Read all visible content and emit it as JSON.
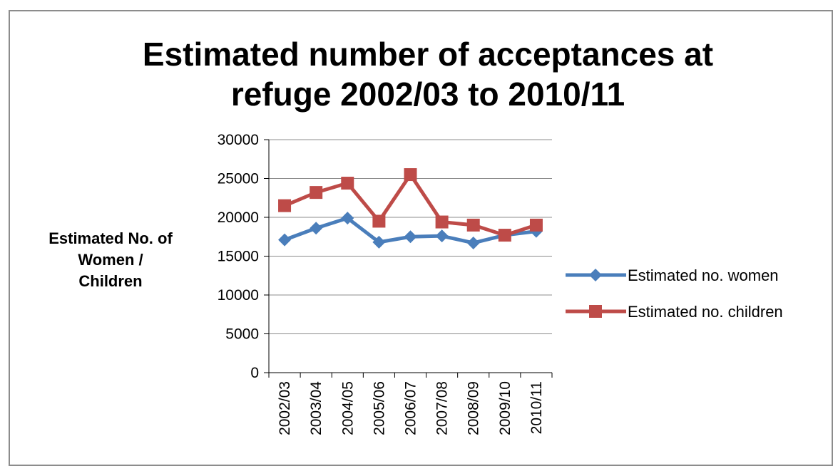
{
  "chart_data": {
    "type": "line",
    "title": "Estimated number of acceptances at refuge 2002/03 to 2010/11",
    "title_lines": [
      "Estimated number of acceptances at",
      "refuge 2002/03 to 2010/11"
    ],
    "xlabel": "",
    "ylabel": "Estimated No. of Women / Children",
    "ylabel_lines": [
      "Estimated No. of",
      "Women /",
      "Children"
    ],
    "categories": [
      "2002/03",
      "2003/04",
      "2004/05",
      "2005/06",
      "2006/07",
      "2007/08",
      "2008/09",
      "2009/10",
      "2010/11"
    ],
    "ylim": [
      0,
      30000
    ],
    "yticks": [
      0,
      5000,
      10000,
      15000,
      20000,
      25000,
      30000
    ],
    "grid": true,
    "legend_position": "right",
    "series": [
      {
        "name": "Estimated no. women",
        "color": "#4a7ebb",
        "marker": "diamond",
        "values": [
          17100,
          18600,
          19900,
          16800,
          17500,
          17600,
          16700,
          17700,
          18200
        ]
      },
      {
        "name": "Estimated no. children",
        "color": "#be4b48",
        "marker": "square",
        "values": [
          21500,
          23200,
          24400,
          19500,
          25500,
          19400,
          19000,
          17700,
          19000
        ]
      }
    ]
  }
}
